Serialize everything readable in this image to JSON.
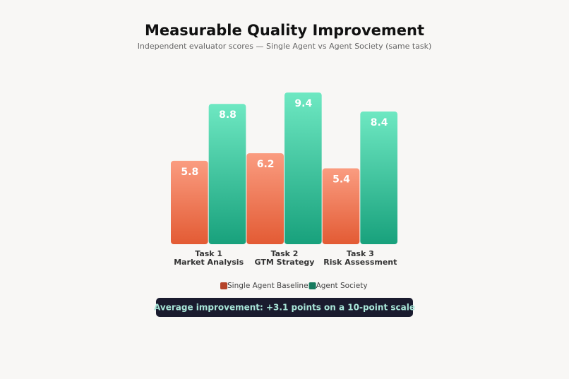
{
  "chart_data": {
    "type": "bar",
    "title": "Measurable Quality Improvement",
    "subtitle": "Independent evaluator scores — Single Agent vs Agent Society (same task)",
    "categories": [
      [
        "Task 1",
        "Market Analysis"
      ],
      [
        "Task 2",
        "GTM Strategy"
      ],
      [
        "Task 3",
        "Risk Assessment"
      ]
    ],
    "series": [
      {
        "name": "Single Agent Baseline",
        "color": "#b5442a",
        "gradient": [
          "#fa9c80",
          "#e35b34"
        ],
        "values": [
          5.8,
          6.2,
          5.4
        ]
      },
      {
        "name": "Agent Society",
        "color": "#177a5e",
        "gradient": [
          "#6ee8c2",
          "#18a17c"
        ],
        "values": [
          8.8,
          9.4,
          8.4
        ]
      }
    ],
    "ylim": [
      1.4,
      10
    ],
    "annotation": "Average improvement: +3.1 points on a 10-point scale"
  }
}
